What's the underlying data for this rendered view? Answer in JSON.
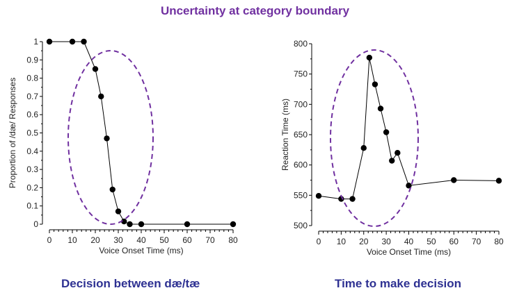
{
  "title": "Uncertainty at category boundary",
  "captions": {
    "left": "Decision between dæ/tæ",
    "right": "Time to make decision"
  },
  "colors": {
    "accent": "#7030a0",
    "line": "#000000",
    "marker": "#000000"
  },
  "chart_data": [
    {
      "type": "line",
      "xlabel": "Voice Onset Time (ms)",
      "ylabel": "Proportion of /dæ/ Responses",
      "xlim": [
        0,
        80
      ],
      "ylim": [
        0,
        1
      ],
      "xticks": [
        "0",
        "10",
        "20",
        "30",
        "40",
        "50",
        "60",
        "70",
        "80"
      ],
      "yticks": [
        "0",
        "0.1",
        "0.2",
        "0.3",
        "0.4",
        "0.5",
        "0.6",
        "0.7",
        "0.8",
        "0.9",
        "1"
      ],
      "grid": false,
      "x": [
        0,
        10,
        15,
        20,
        22.5,
        25,
        27.5,
        30,
        32.5,
        35,
        40,
        60,
        80
      ],
      "y": [
        1,
        1,
        1,
        0.85,
        0.7,
        0.47,
        0.19,
        0.07,
        0.015,
        0.0,
        0.0,
        0.0,
        0.0
      ],
      "highlight": "dashed ellipse around 15–35 ms"
    },
    {
      "type": "line",
      "xlabel": "Voice Onset Time (ms)",
      "ylabel": "Reaction Time (ms)",
      "xlim": [
        0,
        80
      ],
      "ylim": [
        500,
        800
      ],
      "xticks": [
        "0",
        "10",
        "20",
        "30",
        "40",
        "50",
        "60",
        "70",
        "80"
      ],
      "yticks": [
        "500",
        "550",
        "600",
        "650",
        "700",
        "750",
        "800"
      ],
      "grid": false,
      "x": [
        0,
        10,
        15,
        20,
        22.5,
        25,
        27.5,
        30,
        32.5,
        35,
        40,
        60,
        80
      ],
      "y": [
        549,
        544,
        544,
        628,
        777,
        733,
        693,
        654,
        607,
        620,
        566,
        575,
        574
      ],
      "highlight": "dashed ellipse around 5–45 ms"
    }
  ]
}
